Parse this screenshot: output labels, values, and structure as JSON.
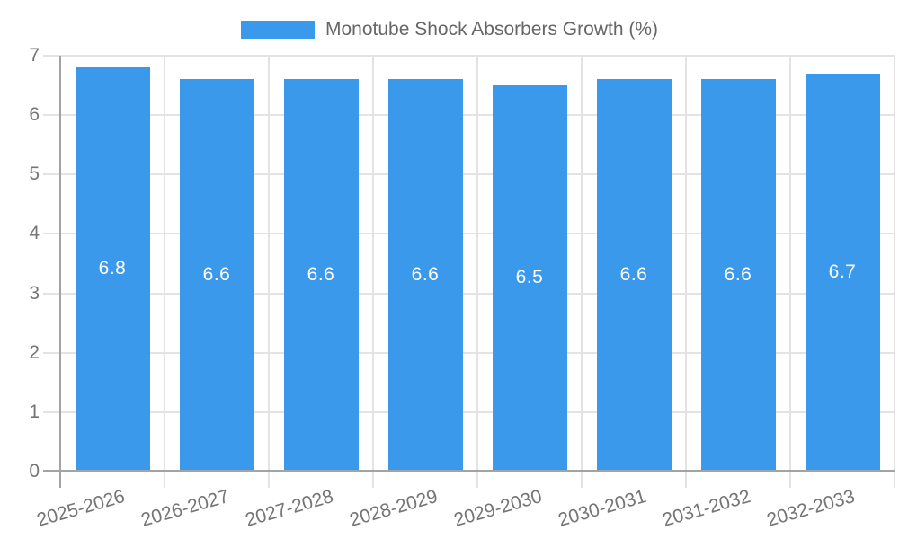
{
  "chart_data": {
    "type": "bar",
    "title": "Monotube Shock Absorbers Growth (%)",
    "categories": [
      "2025-2026",
      "2026-2027",
      "2027-2028",
      "2028-2029",
      "2029-2030",
      "2030-2031",
      "2031-2032",
      "2032-2033"
    ],
    "values": [
      6.8,
      6.6,
      6.6,
      6.6,
      6.5,
      6.6,
      6.6,
      6.7
    ],
    "xlabel": "",
    "ylabel": "",
    "ylim": [
      0,
      7
    ],
    "yticks": [
      0,
      1,
      2,
      3,
      4,
      5,
      6,
      7
    ],
    "grid": true,
    "legend_position": "top",
    "colors": {
      "bar": "#3B99EC",
      "value_label": "#FFFFFF",
      "axis_text": "#757575",
      "legend_text": "#666666",
      "gridline": "#E3E3E3",
      "axis_line": "#A3A3A3"
    }
  }
}
